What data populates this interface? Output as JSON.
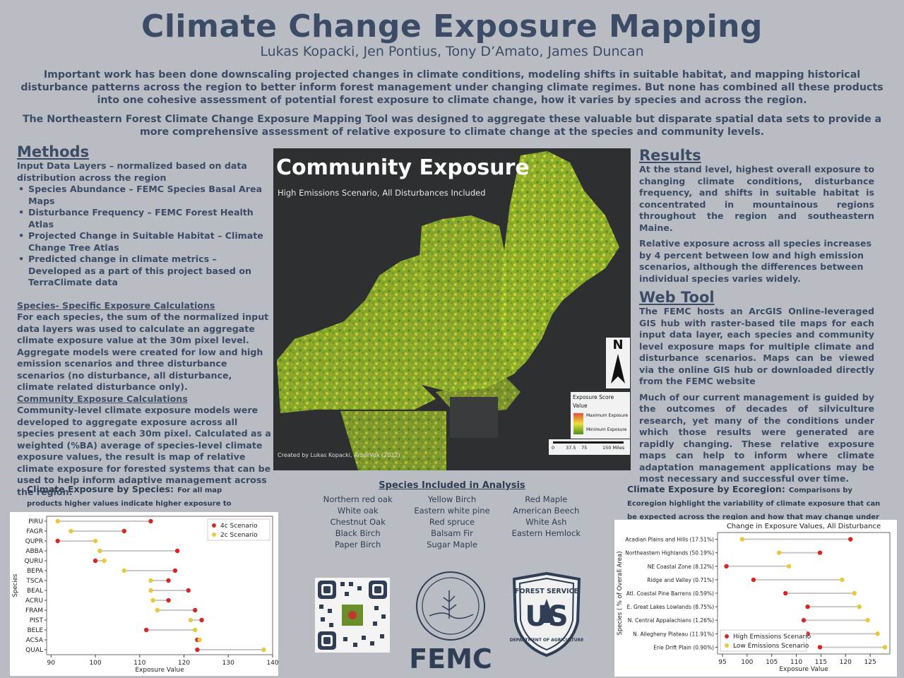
{
  "title": "Climate Change Exposure Mapping",
  "authors": "Lukas Kopacki, Jen Pontius, Tony D’Amato, James Duncan",
  "intro": [
    "Important work has been done downscaling projected changes in climate conditions, modeling shifts in suitable habitat, and mapping historical disturbance patterns across the region to better inform forest management under changing climate regimes. But none has combined all these products into one cohesive assessment of potential forest exposure to climate change, how it varies by species and across the region.",
    "The Northeastern Forest Climate Change Exposure Mapping Tool was designed to aggregate these valuable but disparate spatial data sets to provide a more comprehensive assessment of relative exposure to climate change at the species and community levels."
  ],
  "methods": {
    "heading": "Methods",
    "input_intro": "Input Data Layers – normalized based on data distribution across the region",
    "bullets": [
      "Species Abundance – FEMC Species Basal Area Maps",
      "Disturbance Frequency – FEMC Forest Health Atlas",
      "Projected Change in Suitable Habitat – Climate Change Tree Atlas",
      "Predicted change in climate metrics – Developed as a part of this project based on TerraClimate data"
    ],
    "species_heading": "Species- Specific Exposure Calculations",
    "species_text": "For each species, the sum of the normalized input data layers was used to calculate an aggregate climate exposure value at the 30m pixel level. Aggregate models were created for low and high emission scenarios and three disturbance scenarios (no disturbance, all disturbance, climate related disturbance only).",
    "community_heading": "Community Exposure Calculations",
    "community_text": "Community-level climate exposure models were developed to aggregate exposure across all species present at each 30m pixel. Calculated as a weighted (%BA) average of species-level climate exposure values, the result is map of relative climate exposure for forested systems that can be used to help inform adaptive management across the region."
  },
  "map": {
    "title": "Community Exposure",
    "subtitle": "High Emissions Scenario, All Disturbances Included",
    "credit": "Created by Lukas Kopacki, ArborVox (2022)",
    "north": "N",
    "legend_title": "Exposure Score",
    "legend_value": "Value",
    "legend_max": "Maximum Exposure",
    "legend_min": "Minimum Exposure",
    "scale_labels": [
      "0",
      "37.5",
      "75",
      "150 Miles"
    ]
  },
  "results": {
    "heading": "Results",
    "p1": "At the stand level, highest overall exposure to changing climate conditions, disturbance frequency, and shifts in suitable habitat is concentrated in mountainous regions throughout the region and southeastern Maine.",
    "p2": "Relative exposure across all species increases by 4 percent between low and high emission scenarios, although the differences between individual species varies widely.",
    "web_heading": "Web Tool",
    "p3": "The FEMC hosts an ArcGIS Online-leveraged GIS hub with raster-based tile maps for each input data layer, each species and community level exposure maps for multiple climate and disturbance scenarios. Maps can be viewed via the online GIS hub or downloaded directly from the FEMC website",
    "p4": "Much of our current management is guided by the outcomes of decades of silviculture research, yet many of the conditions under which those results were generated are rapidly changing. These relative exposure maps can help to inform where climate adaptation management applications may be most necessary and successful over time."
  },
  "species_card": {
    "title": "Climate Exposure by Species:",
    "note": "For all map products higher values indicate higher exposure to climate change and potential risk for impacts."
  },
  "ecoregion_card": {
    "title": "Climate Exposure by Ecoregion:",
    "note": "Comparisons by Ecoregion highlight the variability of climate exposure that can be expected across the region and how that may change under low and high emission scenarios."
  },
  "species_list": {
    "heading": "Species Included in Analysis",
    "items": [
      "Northern red oak",
      "Yellow Birch",
      "Red Maple",
      "White oak",
      "Eastern white pine",
      "American Beech",
      "Chestnut Oak",
      "Red spruce",
      "White Ash",
      "Black Birch",
      "Balsam Fir",
      "Eastern Hemlock",
      "Paper Birch",
      "Sugar Maple",
      ""
    ]
  },
  "logos": {
    "femc": "FEMC",
    "fs_top": "FOREST SERVICE",
    "fs_mid": "US",
    "fs_bottom": "DEPARTMENT OF AGRICULTURE"
  },
  "colors": {
    "high": "#d62728",
    "low": "#e8c93a",
    "text": "#3c4c66"
  },
  "chart_data": [
    {
      "type": "scatter",
      "title": "",
      "xlabel": "Exposure Value",
      "ylabel": "Species",
      "xlim": [
        89,
        140
      ],
      "xticks": [
        90,
        100,
        110,
        120,
        130,
        140
      ],
      "legend": "top-right",
      "categories": [
        "PIRU",
        "FAGR",
        "QUPR",
        "ABBA",
        "QURU",
        "BEPA",
        "TSCA",
        "BEAL",
        "ACRU",
        "FRAM",
        "PIST",
        "BELE",
        "ACSA",
        "QUAL"
      ],
      "series": [
        {
          "name": "4c Scenario",
          "values": [
            112.5,
            106.5,
            91.5,
            118.5,
            100,
            118,
            116.5,
            121,
            116.5,
            122.5,
            124,
            111.5,
            123,
            123
          ]
        },
        {
          "name": "2c Scenario",
          "values": [
            91.5,
            94.5,
            100,
            101,
            102,
            106.5,
            112.5,
            112.5,
            113,
            114,
            121.5,
            122.5,
            123.5,
            138
          ]
        }
      ]
    },
    {
      "type": "scatter",
      "title": "Change in Exposure Values, All Disturbance",
      "xlabel": "Exposure Value",
      "ylabel": "Species ( % of Overall Area)",
      "xlim": [
        94,
        129
      ],
      "xticks": [
        95,
        100,
        105,
        110,
        115,
        120,
        125
      ],
      "legend": "bottom-left",
      "categories": [
        "Acadian Plains and Hills (17.51%)",
        "Northeastern Highlands (50.19%)",
        "NE Coastal Zone (8.12%)",
        "Ridge and Valley (0.71%)",
        "Atl. Coastal Pine Barrens (0.59%)",
        "E. Great Lakes Lowlands (8.75%)",
        "N. Central Appalachians (1.26%)",
        "N. Allegheny Plateau (11.91%)",
        "Erie Drift Plain (0.90%)"
      ],
      "series": [
        {
          "name": "High Emissions Scenario",
          "values": [
            121,
            114.8,
            95.8,
            101.3,
            107.8,
            112.3,
            111.5,
            112.3,
            114.8
          ]
        },
        {
          "name": "Low Emissions Scenario",
          "values": [
            99,
            106.5,
            108.5,
            119.3,
            121.8,
            122.8,
            124.5,
            126.5,
            128
          ]
        }
      ]
    }
  ]
}
